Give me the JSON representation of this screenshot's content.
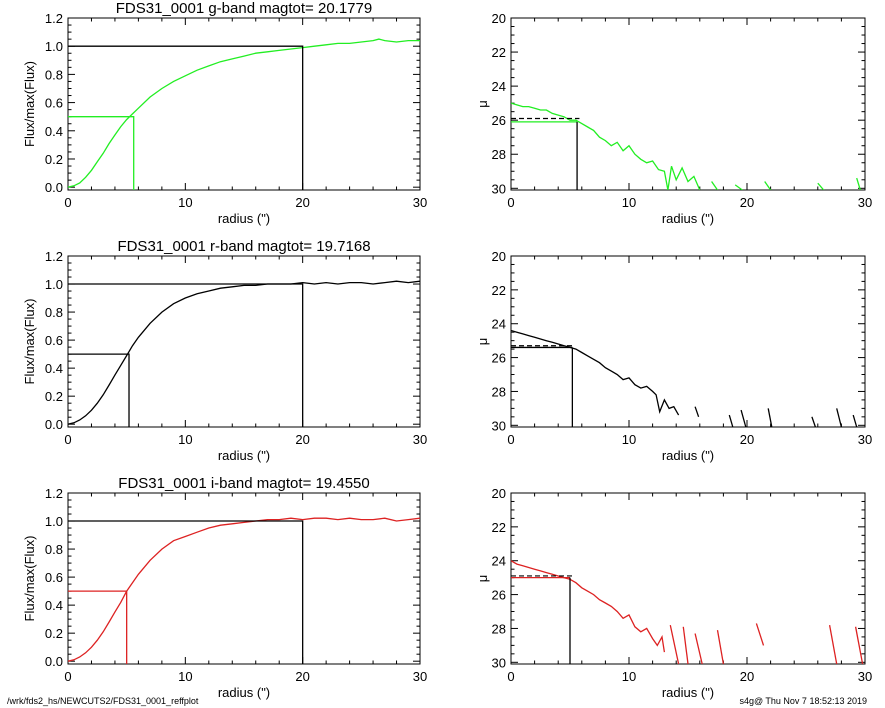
{
  "footer": {
    "left": "/wrk/fds2_hs/NEWCUTS2/FDS31_0001_reffplot",
    "right": "s4g@  Thu Nov  7 18:52:13 2019"
  },
  "chart_data": [
    {
      "type": "line",
      "panel": "growth",
      "band": "g",
      "title": "FDS31_0001 g-band  magtot=      20.1779",
      "xlabel": "radius (\")",
      "ylabel": "Flux/max(Flux)",
      "xlim": [
        0,
        30
      ],
      "ylim": [
        -0.02,
        1.2
      ],
      "xticks": [
        "0",
        "10",
        "20",
        "30"
      ],
      "yticks": [
        "0.0",
        "0.2",
        "0.4",
        "0.6",
        "0.8",
        "1.0",
        "1.2"
      ],
      "color": "#22ee22",
      "series": [
        {
          "x": [
            0,
            0.5,
            1,
            1.5,
            2,
            2.5,
            3,
            3.5,
            4,
            4.5,
            5,
            5.5,
            6,
            7,
            8,
            9,
            10,
            11,
            12,
            13,
            14,
            15,
            16,
            17,
            18,
            19,
            20,
            21,
            22,
            23,
            24,
            25,
            26,
            26.5,
            27,
            28,
            29,
            30
          ],
          "y": [
            0,
            0.01,
            0.03,
            0.07,
            0.12,
            0.18,
            0.24,
            0.31,
            0.37,
            0.43,
            0.48,
            0.52,
            0.56,
            0.64,
            0.7,
            0.75,
            0.79,
            0.83,
            0.86,
            0.89,
            0.91,
            0.93,
            0.95,
            0.96,
            0.97,
            0.98,
            0.99,
            1.0,
            1.01,
            1.02,
            1.02,
            1.03,
            1.04,
            1.05,
            1.04,
            1.03,
            1.04,
            1.04
          ]
        }
      ],
      "lines": {
        "half_light": {
          "r": 5.6,
          "f": 0.5
        },
        "total": {
          "r": 20,
          "f": 1.0
        }
      }
    },
    {
      "type": "line",
      "panel": "profile",
      "band": "g",
      "xlabel": "radius (\")",
      "ylabel": "μ",
      "xlim": [
        0,
        30
      ],
      "ylim": [
        30.1,
        20
      ],
      "xticks": [
        "0",
        "10",
        "20",
        "30"
      ],
      "yticks": [
        "20",
        "22",
        "24",
        "26",
        "28",
        "30"
      ],
      "color": "#22ee22",
      "series": [
        {
          "x": [
            0,
            0.5,
            1,
            1.5,
            2,
            2.5,
            3,
            3.5,
            4,
            4.5,
            5,
            5.5,
            6,
            6.5,
            7,
            7.5,
            8,
            8.5,
            9,
            9.5,
            10,
            10.5,
            11,
            11.5,
            12,
            12.5,
            13,
            13.3,
            13.6,
            14,
            14.5,
            15,
            15.5,
            16
          ],
          "y": [
            25.0,
            25.1,
            25.2,
            25.2,
            25.3,
            25.4,
            25.4,
            25.6,
            25.7,
            25.8,
            26.0,
            26.0,
            26.2,
            26.4,
            26.6,
            27.0,
            27.2,
            27.5,
            27.3,
            27.8,
            27.5,
            28.0,
            28.3,
            28.5,
            28.4,
            28.9,
            29.0,
            30.1,
            28.7,
            29.5,
            28.8,
            29.6,
            29.3,
            30.1
          ]
        },
        {
          "x": [
            17,
            17.5
          ],
          "y": [
            29.6,
            30.1
          ]
        },
        {
          "x": [
            19,
            19.6
          ],
          "y": [
            29.8,
            30.1
          ]
        },
        {
          "x": [
            21.5,
            22
          ],
          "y": [
            29.6,
            30.1
          ]
        },
        {
          "x": [
            26,
            26.5
          ],
          "y": [
            29.7,
            30.1
          ]
        },
        {
          "x": [
            29.3,
            29.6
          ],
          "y": [
            29.4,
            30.1
          ]
        }
      ],
      "dashed": {
        "x": [
          0,
          5.8
        ],
        "y": 25.9
      },
      "lines": {
        "mu_eff": 26.1,
        "r_eff": 5.6
      }
    },
    {
      "type": "line",
      "panel": "growth",
      "band": "r",
      "title": "FDS31_0001 r-band  magtot=      19.7168",
      "xlabel": "radius (\")",
      "ylabel": "Flux/max(Flux)",
      "xlim": [
        0,
        30
      ],
      "ylim": [
        -0.02,
        1.2
      ],
      "xticks": [
        "0",
        "10",
        "20",
        "30"
      ],
      "yticks": [
        "0.0",
        "0.2",
        "0.4",
        "0.6",
        "0.8",
        "1.0",
        "1.2"
      ],
      "color": "#000000",
      "series": [
        {
          "x": [
            0,
            0.5,
            1,
            1.5,
            2,
            2.5,
            3,
            3.5,
            4,
            4.5,
            5,
            5.5,
            6,
            7,
            8,
            9,
            10,
            11,
            12,
            13,
            14,
            15,
            16,
            17,
            18,
            19,
            20,
            21,
            22,
            23,
            24,
            25,
            26,
            27,
            28,
            29,
            30
          ],
          "y": [
            0,
            0.01,
            0.03,
            0.06,
            0.1,
            0.15,
            0.21,
            0.28,
            0.35,
            0.42,
            0.49,
            0.56,
            0.62,
            0.72,
            0.8,
            0.86,
            0.9,
            0.93,
            0.95,
            0.97,
            0.98,
            0.99,
            0.99,
            1.0,
            1.0,
            1.0,
            1.01,
            1.0,
            1.01,
            1.0,
            1.01,
            1.01,
            1.0,
            1.01,
            1.02,
            1.01,
            1.02
          ]
        }
      ],
      "lines": {
        "half_light": {
          "r": 5.2,
          "f": 0.5
        },
        "total": {
          "r": 20,
          "f": 1.0
        }
      }
    },
    {
      "type": "line",
      "panel": "profile",
      "band": "r",
      "xlabel": "radius (\")",
      "ylabel": "μ",
      "xlim": [
        0,
        30
      ],
      "ylim": [
        30.1,
        20
      ],
      "xticks": [
        "0",
        "10",
        "20",
        "30"
      ],
      "yticks": [
        "20",
        "22",
        "24",
        "26",
        "28",
        "30"
      ],
      "color": "#000000",
      "series": [
        {
          "x": [
            0,
            0.5,
            1,
            1.5,
            2,
            2.5,
            3,
            3.5,
            4,
            4.5,
            5,
            5.5,
            6,
            6.5,
            7,
            7.5,
            8,
            8.5,
            9,
            9.5,
            10,
            10.5,
            11,
            11.5,
            12,
            12.3,
            12.6,
            13,
            13.4,
            13.8,
            14.2
          ],
          "y": [
            24.4,
            24.5,
            24.6,
            24.7,
            24.8,
            24.9,
            25.0,
            25.1,
            25.2,
            25.3,
            25.4,
            25.5,
            25.7,
            25.9,
            26.1,
            26.3,
            26.6,
            26.8,
            27.0,
            27.3,
            27.2,
            27.6,
            27.8,
            27.7,
            28.0,
            28.2,
            29.2,
            28.5,
            29.0,
            28.9,
            29.4
          ]
        },
        {
          "x": [
            15.6,
            15.9
          ],
          "y": [
            28.9,
            29.5
          ]
        },
        {
          "x": [
            18.5,
            18.8
          ],
          "y": [
            29.4,
            30.1
          ]
        },
        {
          "x": [
            19.5,
            19.9
          ],
          "y": [
            29.1,
            30.1
          ]
        },
        {
          "x": [
            21.8,
            22.1
          ],
          "y": [
            29.0,
            30.1
          ]
        },
        {
          "x": [
            25.5,
            25.8
          ],
          "y": [
            29.5,
            30.1
          ]
        },
        {
          "x": [
            27.6,
            28.0
          ],
          "y": [
            29.0,
            30.1
          ]
        },
        {
          "x": [
            29.0,
            29.3
          ],
          "y": [
            29.4,
            30.1
          ]
        }
      ],
      "dashed": {
        "x": [
          0,
          5.4
        ],
        "y": 25.3
      },
      "lines": {
        "mu_eff": 25.4,
        "r_eff": 5.2
      }
    },
    {
      "type": "line",
      "panel": "growth",
      "band": "i",
      "title": "FDS31_0001 i-band  magtot=      19.4550",
      "xlabel": "radius (\")",
      "ylabel": "Flux/max(Flux)",
      "xlim": [
        0,
        30
      ],
      "ylim": [
        -0.02,
        1.2
      ],
      "xticks": [
        "0",
        "10",
        "20",
        "30"
      ],
      "yticks": [
        "0.0",
        "0.2",
        "0.4",
        "0.6",
        "0.8",
        "1.0",
        "1.2"
      ],
      "color": "#dd2222",
      "series": [
        {
          "x": [
            0,
            0.5,
            1,
            1.5,
            2,
            2.5,
            3,
            3.5,
            4,
            4.5,
            5,
            5.5,
            6,
            7,
            8,
            9,
            10,
            11,
            12,
            13,
            14,
            15,
            16,
            17,
            18,
            19,
            20,
            21,
            22,
            23,
            24,
            25,
            26,
            27,
            28,
            29,
            30
          ],
          "y": [
            0,
            0.01,
            0.03,
            0.06,
            0.1,
            0.15,
            0.21,
            0.28,
            0.35,
            0.42,
            0.5,
            0.56,
            0.62,
            0.72,
            0.8,
            0.86,
            0.89,
            0.92,
            0.95,
            0.97,
            0.98,
            0.99,
            1.0,
            1.01,
            1.01,
            1.02,
            1.01,
            1.02,
            1.02,
            1.01,
            1.02,
            1.01,
            1.01,
            1.02,
            1.0,
            1.01,
            1.02
          ]
        }
      ],
      "lines": {
        "half_light": {
          "r": 5.0,
          "f": 0.5
        },
        "total": {
          "r": 20,
          "f": 1.0
        }
      }
    },
    {
      "type": "line",
      "panel": "profile",
      "band": "i",
      "xlabel": "radius (\")",
      "ylabel": "μ",
      "xlim": [
        0,
        30
      ],
      "ylim": [
        30.1,
        20
      ],
      "xticks": [
        "0",
        "10",
        "20",
        "30"
      ],
      "yticks": [
        "20",
        "22",
        "24",
        "26",
        "28",
        "30"
      ],
      "color": "#dd2222",
      "series": [
        {
          "x": [
            0,
            0.5,
            1,
            1.5,
            2,
            2.5,
            3,
            3.5,
            4,
            4.5,
            5,
            5.5,
            6,
            6.5,
            7,
            7.5,
            8,
            8.5,
            9,
            9.5,
            10,
            10.5,
            11,
            11.5,
            12,
            12.4,
            12.8,
            13.0
          ],
          "y": [
            24.0,
            24.2,
            24.3,
            24.4,
            24.5,
            24.6,
            24.7,
            24.8,
            24.9,
            25.0,
            25.1,
            25.3,
            25.6,
            25.8,
            26.0,
            26.3,
            26.5,
            26.7,
            27.0,
            27.4,
            27.2,
            27.9,
            28.2,
            28.0,
            28.6,
            29.0,
            28.5,
            29.4
          ]
        },
        {
          "x": [
            13.5,
            14.2
          ],
          "y": [
            27.8,
            30.1
          ]
        },
        {
          "x": [
            14.6,
            15.0
          ],
          "y": [
            27.9,
            30.1
          ]
        },
        {
          "x": [
            15.6,
            16.2
          ],
          "y": [
            28.3,
            30.1
          ]
        },
        {
          "x": [
            17.5,
            18.0
          ],
          "y": [
            28.1,
            30.1
          ]
        },
        {
          "x": [
            20.8,
            21.4
          ],
          "y": [
            27.7,
            29.0
          ]
        },
        {
          "x": [
            27.0,
            27.6
          ],
          "y": [
            27.8,
            30.1
          ]
        },
        {
          "x": [
            29.2,
            29.8
          ],
          "y": [
            27.9,
            30.1
          ]
        }
      ],
      "dashed": {
        "x": [
          0,
          5.2
        ],
        "y": 24.9
      },
      "lines": {
        "mu_eff": 25.0,
        "r_eff": 5.0
      }
    }
  ]
}
